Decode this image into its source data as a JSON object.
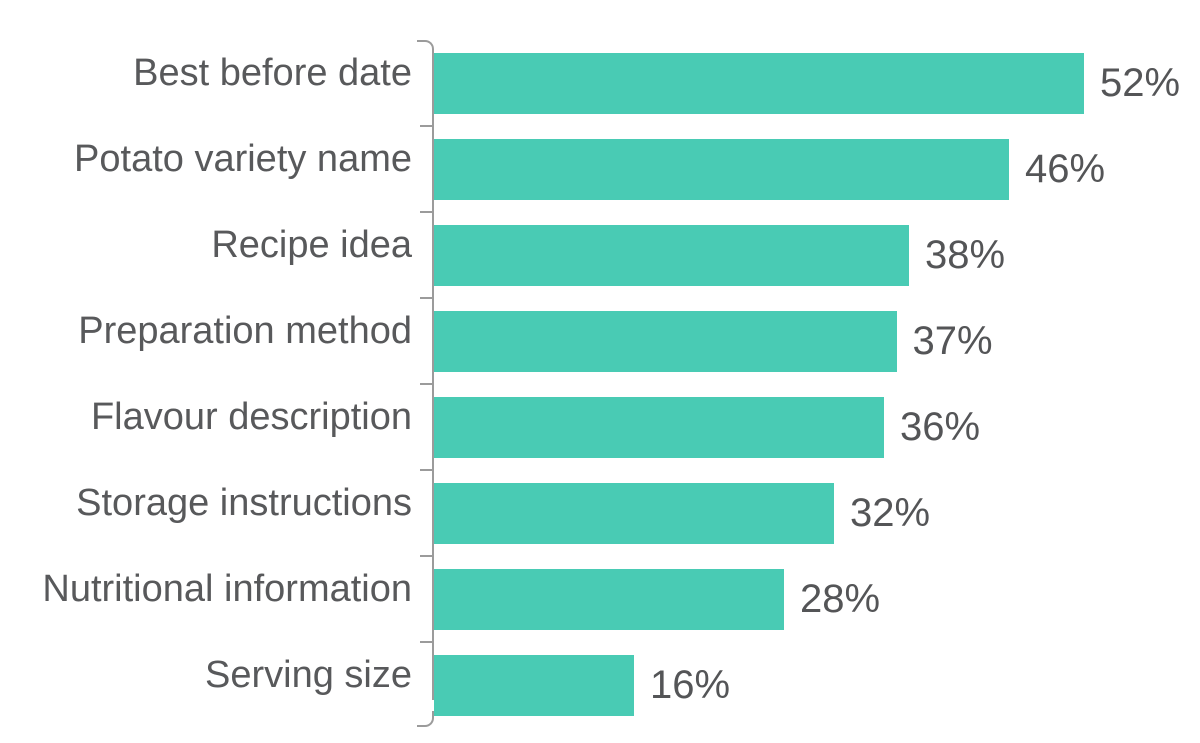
{
  "chart_data": {
    "type": "bar",
    "orientation": "horizontal",
    "title": "",
    "xlabel": "",
    "ylabel": "",
    "categories": [
      "Best before date",
      "Potato variety name",
      "Recipe idea",
      "Preparation method",
      "Flavour description",
      "Storage instructions",
      "Nutritional information",
      "Serving size"
    ],
    "values": [
      52,
      46,
      38,
      37,
      36,
      32,
      28,
      16
    ],
    "value_suffix": "%",
    "xlim": [
      0,
      60
    ],
    "grid": false,
    "legend": "none",
    "bar_color": "#49cbb4",
    "category_label_color": "#58595b",
    "value_label_color": "#545557",
    "axis_color": "#9b9b9b"
  }
}
